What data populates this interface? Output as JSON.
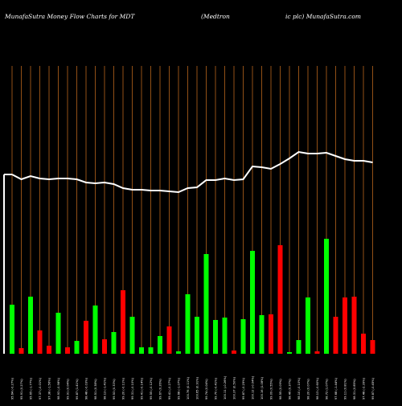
{
  "header": {
    "left": "MunafaSutra  Money Flow  Charts for MDT",
    "middle": "(Medtron",
    "right": "ic plc) MunafaSutra.com"
  },
  "chart_data": {
    "type": "bar",
    "title": "MunafaSutra  Money Flow  Charts for MDT (Medtronic plc) MunafaSutra.com",
    "grid": "vertical",
    "colors": {
      "up": "#00ff00",
      "down": "#ff0000",
      "grid": "#b8641c",
      "line": "#ffffff",
      "background": "#000000"
    },
    "categories": [
      "95.64 (-0.27%)",
      "95.91 (0.27%)",
      "95.65 (-1.77%)",
      "97.37 (-0.01%)",
      "97.38 (-1.56%)",
      "98.93 (-0.98%)",
      "99.91 (0.04%)",
      "99.87 (1.41%)",
      "98.48 (-0.03%)",
      "98.51 (0.38%)",
      "98.13 (-1.41%)",
      "99.53 (0.33%)",
      "99.20 (-0.11%)",
      "99.31 (-0.10%)",
      "99.41 (-0.14%)",
      "99.55 (-0.12%)",
      "99.67 (0.26%)",
      "99.41 (-0.27%)",
      "99.68 (-1.07%)",
      "100.76 (0.11%)",
      "100.65 (0.91%)",
      "99.74 (0.04%)",
      "99.70 (-0.41%)",
      "100.11 (-0.26%)",
      "100.37 (0.50%)",
      "99.87 (-0.25%)",
      "100.12 (-0.04%)",
      "100.16 (1.08%)",
      "99.09 (0.55%)",
      "98.55 (0.09%)",
      "98.46 (0.37%)",
      "98.10 (-0.10%)",
      "98.20 (0.07%)",
      "98.13 (-0.60%)",
      "98.72 (1.07%)",
      "97.68 (-1.44%)",
      "99.11 (0.81%)",
      "98.31 (0.85%)",
      "97.48 (-2.39%)",
      "99.87 (-0.45%)"
    ],
    "bar_direction": [
      "up",
      "down",
      "up",
      "down",
      "down",
      "up",
      "down",
      "up",
      "down",
      "up",
      "down",
      "up",
      "down",
      "up",
      "up",
      "up",
      "up",
      "down",
      "up",
      "up",
      "up",
      "up",
      "up",
      "up",
      "down",
      "up",
      "up",
      "up",
      "down",
      "down",
      "up",
      "up",
      "up",
      "down",
      "up",
      "down",
      "down",
      "down",
      "down",
      "down"
    ],
    "bar_values": [
      61,
      7,
      71,
      29,
      10,
      51,
      8,
      16,
      41,
      60,
      18,
      27,
      79,
      46,
      8,
      8,
      22,
      34,
      3,
      74,
      46,
      124,
      42,
      45,
      4,
      43,
      128,
      48,
      49,
      135,
      2,
      17,
      70,
      3,
      143,
      46,
      70,
      71,
      25,
      17
    ],
    "line_values": [
      223,
      217,
      221,
      218,
      217,
      218,
      218,
      217,
      213,
      212,
      213,
      211,
      206,
      204,
      204,
      203,
      203,
      202,
      201,
      206,
      207,
      216,
      216,
      218,
      216,
      217,
      233,
      232,
      230,
      236,
      243,
      251,
      249,
      249,
      250,
      246,
      242,
      240,
      240,
      238
    ],
    "ylim": [
      0,
      175
    ],
    "line_ylim": [
      0,
      320
    ]
  }
}
